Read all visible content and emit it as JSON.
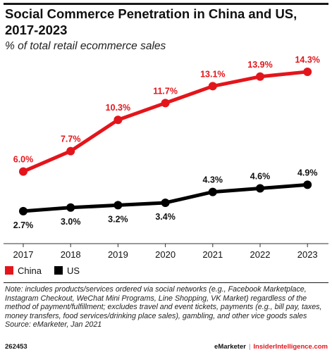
{
  "header": {
    "title": "Social Commerce Penetration in China and US, 2017-2023",
    "subtitle": "% of total retail ecommerce sales"
  },
  "chart_data": {
    "type": "line",
    "x": [
      "2017",
      "2018",
      "2019",
      "2020",
      "2021",
      "2022",
      "2023"
    ],
    "ylim": [
      0,
      15
    ],
    "grid": false,
    "legend_position": "bottom-left",
    "series": [
      {
        "name": "China",
        "color": "#e3151b",
        "values": [
          6.0,
          7.7,
          10.3,
          11.7,
          13.1,
          13.9,
          14.3
        ],
        "labels": [
          "6.0%",
          "7.7%",
          "10.3%",
          "11.7%",
          "13.1%",
          "13.9%",
          "14.3%"
        ]
      },
      {
        "name": "US",
        "color": "#000000",
        "values": [
          2.7,
          3.0,
          3.2,
          3.4,
          4.3,
          4.6,
          4.9
        ],
        "labels": [
          "2.7%",
          "3.0%",
          "3.2%",
          "3.4%",
          "4.3%",
          "4.6%",
          "4.9%"
        ]
      }
    ]
  },
  "note": {
    "text": "Note: includes products/services ordered via social networks (e.g., Facebook Marketplace, Instagram Checkout, WeChat Mini Programs, Line Shopping, VK Market) regardless of the method of payment/fulfillment; excludes travel and event tickets, payments (e.g., bill pay, taxes, money transfers, food services/drinking place sales), gambling, and other vice goods sales",
    "source": "Source: eMarketer, Jan 2021"
  },
  "footer": {
    "code": "262453",
    "brand_a": "eMarketer",
    "separator": "|",
    "brand_b": "InsiderIntelligence.com"
  }
}
